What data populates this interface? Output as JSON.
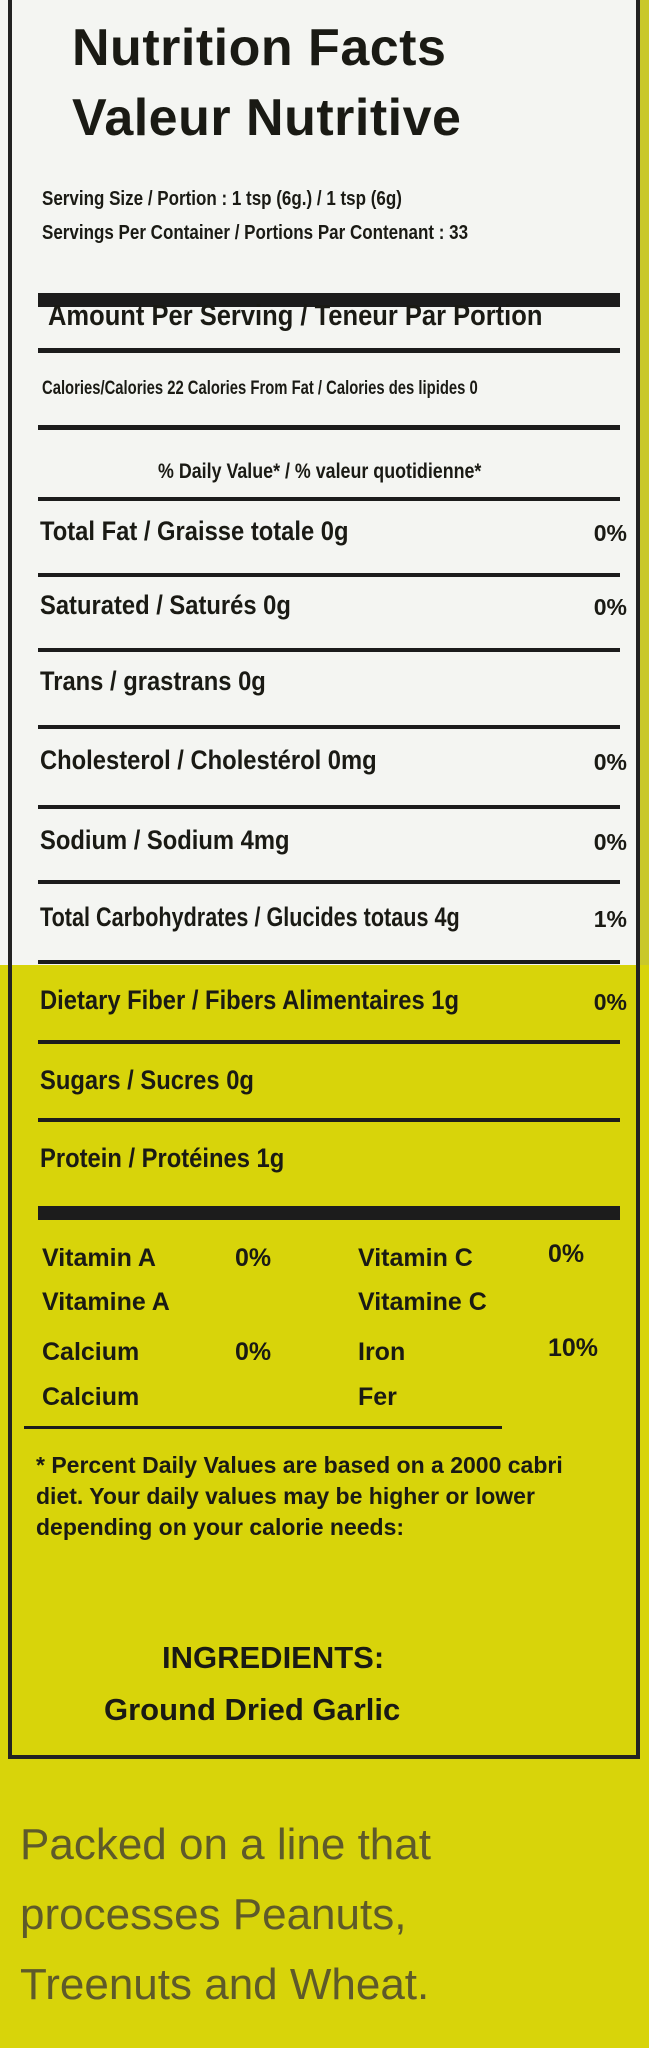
{
  "title_en": "Nutrition Facts",
  "title_fr": "Valeur Nutritive",
  "serving_size": "Serving Size / Portion : 1 tsp (6g.) / 1 tsp (6g)",
  "servings_per_container": "Servings Per Container / Portions Par Contenant : 33",
  "amount_per_serving": "Amount Per Serving / Teneur Par Portion",
  "calories": "Calories/Calories 22  Calories From Fat / Calories des lipides 0",
  "daily_value_header": "% Daily Value* / % valeur quotidienne*",
  "nutrients": [
    {
      "label": "Total Fat / Graisse totale 0g",
      "pct": "0%"
    },
    {
      "label": "Saturated / Saturés 0g",
      "pct": "0%"
    },
    {
      "label": "Trans / grastrans 0g",
      "pct": ""
    },
    {
      "label": "Cholesterol / Cholestérol 0mg",
      "pct": "0%"
    },
    {
      "label": "Sodium / Sodium 4mg",
      "pct": "0%"
    },
    {
      "label": "Total Carbohydrates / Glucides totaus 4g",
      "pct": "1%"
    },
    {
      "label": "Dietary Fiber / Fibers Alimentaires 1g",
      "pct": "0%"
    },
    {
      "label": "Sugars / Sucres 0g",
      "pct": ""
    },
    {
      "label": "Protein / Protéines 1g",
      "pct": ""
    }
  ],
  "vitamins": [
    {
      "en": "Vitamin A",
      "fr": "Vitamine A",
      "pct": "0%"
    },
    {
      "en": "Vitamin C",
      "fr": "Vitamine C",
      "pct": "0%"
    },
    {
      "en": "Calcium",
      "fr": "Calcium",
      "pct": "0%"
    },
    {
      "en": "Iron",
      "fr": "Fer",
      "pct": "10%"
    }
  ],
  "footnote": "* Percent Daily Values are based on a 2000 cabri diet. Your daily values may be higher or lower depending on your calorie needs:",
  "ingredients_heading": "INGREDIENTS:",
  "ingredients": "Ground Dried Garlic",
  "allergen_lines": [
    "Packed on a line that",
    "processes Peanuts,",
    "Treenuts and Wheat."
  ],
  "colors": {
    "label_white": "#f4f5f2",
    "label_yellow": "#d8d40a",
    "ink": "#1a1a14"
  }
}
